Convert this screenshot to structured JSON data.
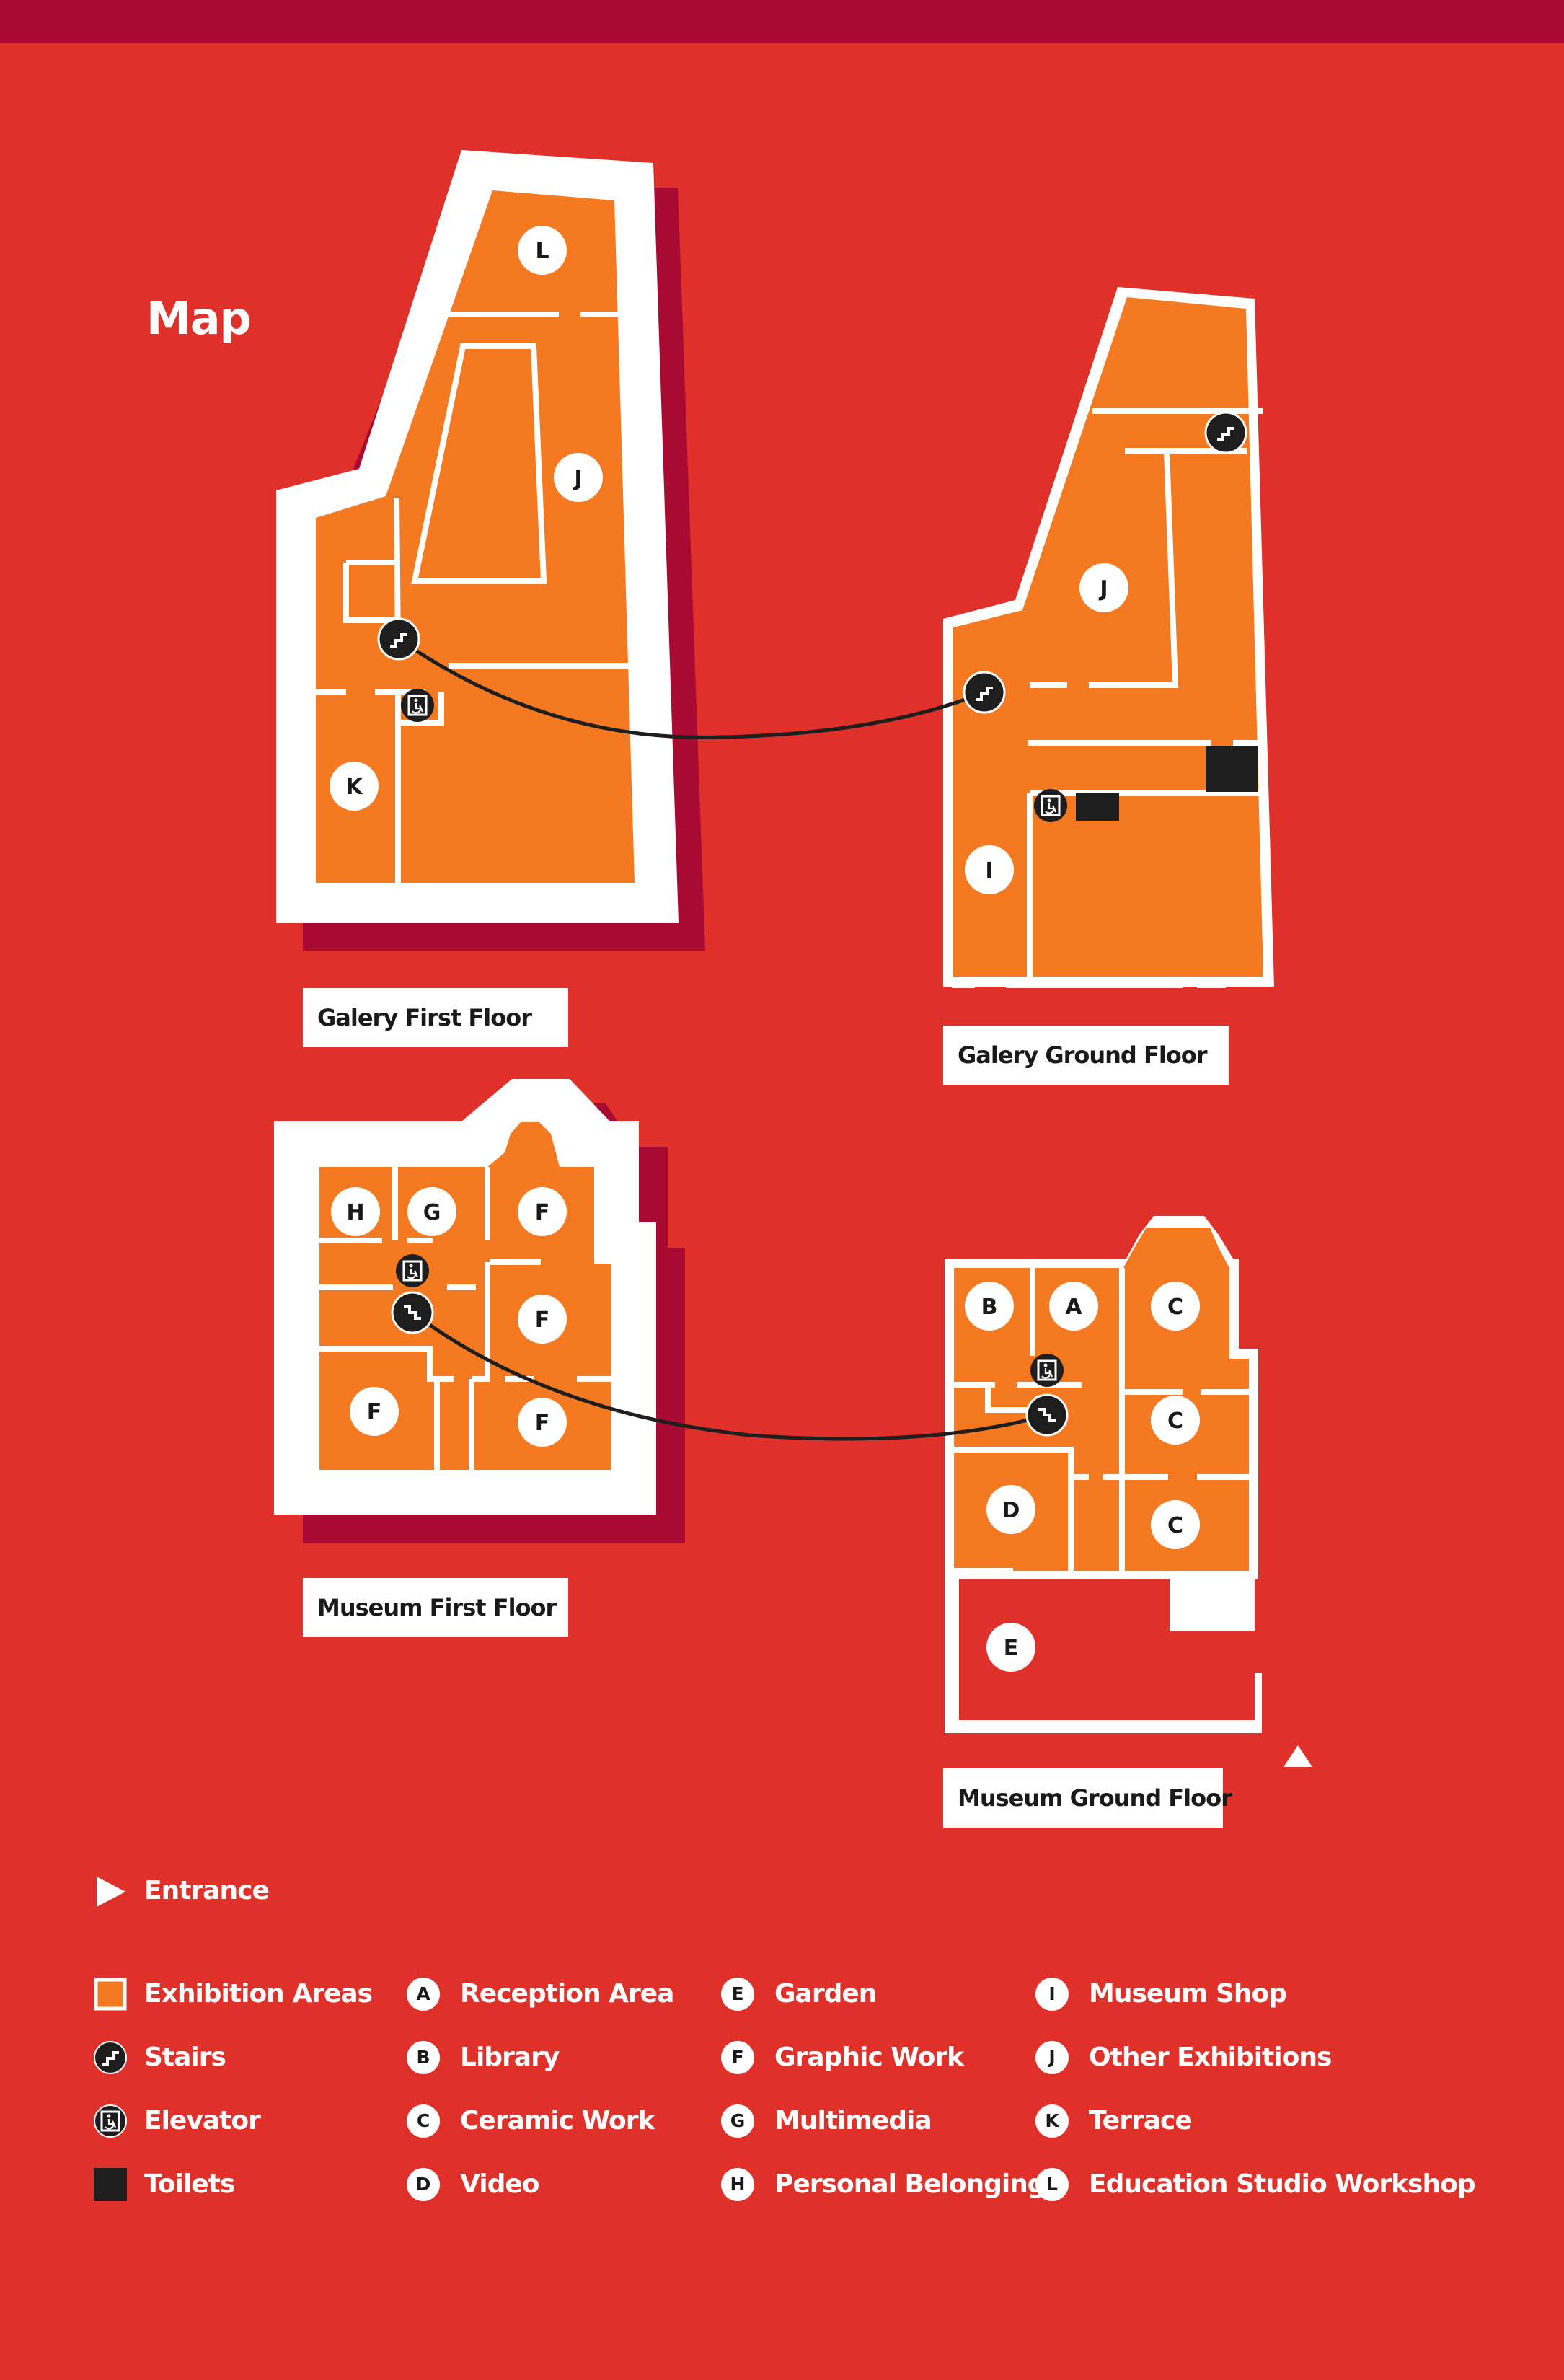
{
  "title": "Map",
  "colors": {
    "background": "#e0302a",
    "top_bar": "#a90a31",
    "exhibition_area": "#f47920",
    "shadow": "#a90a31",
    "wall": "#ffffff",
    "toilet": "#1e1e1e"
  },
  "floors": {
    "gallery_first": "Galery First  Floor",
    "gallery_ground": "Galery Ground  Floor",
    "museum_first": "Museum First  Floor",
    "museum_ground": "Museum Ground  Floor"
  },
  "map_labels": {
    "L": "L",
    "J": "J",
    "K": "K",
    "I": "I",
    "H": "H",
    "G": "G",
    "F": "F",
    "A": "A",
    "B": "B",
    "C": "C",
    "D": "D",
    "E": "E"
  },
  "legend": {
    "entrance": "Entrance",
    "symbols": [
      {
        "icon": "exhibition-area-swatch",
        "label": "Exhibition Areas"
      },
      {
        "icon": "stairs-icon",
        "label": "Stairs"
      },
      {
        "icon": "elevator-icon",
        "label": "Elevator"
      },
      {
        "icon": "toilets-swatch",
        "label": "Toilets"
      }
    ],
    "col2": [
      {
        "letter": "A",
        "label": "Reception Area"
      },
      {
        "letter": "B",
        "label": "Library"
      },
      {
        "letter": "C",
        "label": "Ceramic Work"
      },
      {
        "letter": "D",
        "label": "Video"
      }
    ],
    "col3": [
      {
        "letter": "E",
        "label": "Garden"
      },
      {
        "letter": "F",
        "label": "Graphic Work"
      },
      {
        "letter": "G",
        "label": "Multimedia"
      },
      {
        "letter": "H",
        "label": "Personal Belongings"
      }
    ],
    "col4": [
      {
        "letter": "I",
        "label": "Museum Shop"
      },
      {
        "letter": "J",
        "label": "Other Exhibitions"
      },
      {
        "letter": "K",
        "label": "Terrace"
      },
      {
        "letter": "L",
        "label": "Education Studio Workshop"
      }
    ]
  }
}
